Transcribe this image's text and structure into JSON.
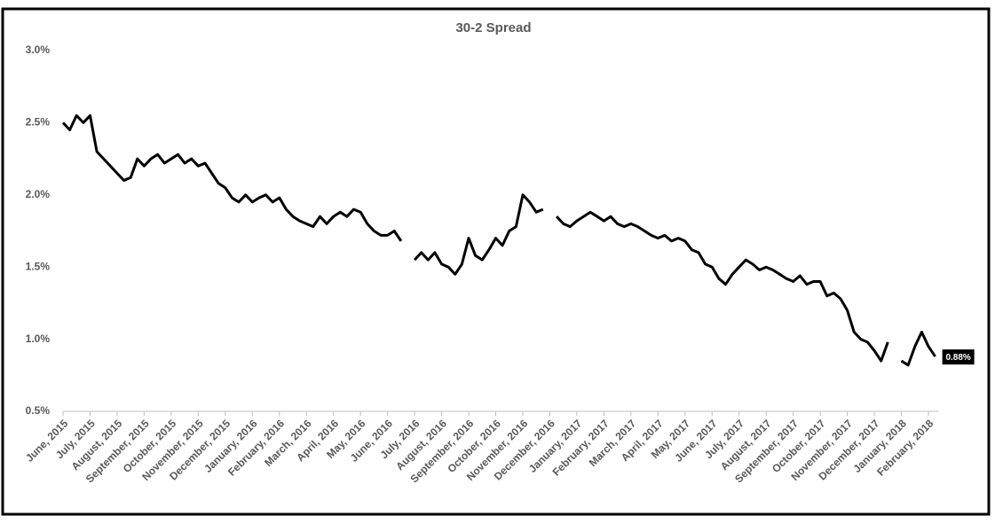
{
  "chart_data": {
    "type": "line",
    "title": "30-2 Spread",
    "categories": [
      "June, 2015",
      null,
      null,
      null,
      "July, 2015",
      null,
      null,
      null,
      "August, 2015",
      null,
      null,
      null,
      "September, 2015",
      null,
      null,
      null,
      "October, 2015",
      null,
      null,
      null,
      "November, 2015",
      null,
      null,
      null,
      "December, 2015",
      null,
      null,
      null,
      "January, 2016",
      null,
      null,
      null,
      "February, 2016",
      null,
      null,
      null,
      "March, 2016",
      null,
      null,
      null,
      "April, 2016",
      null,
      null,
      null,
      "May, 2016",
      null,
      null,
      null,
      "June, 2016",
      null,
      null,
      null,
      "July, 2016",
      null,
      null,
      null,
      "August, 2016",
      null,
      null,
      null,
      "September, 2016",
      null,
      null,
      null,
      "October, 2016",
      null,
      null,
      null,
      "November, 2016",
      null,
      null,
      null,
      "December, 2016",
      null,
      null,
      null,
      "January, 2017",
      null,
      null,
      null,
      "February, 2017",
      null,
      null,
      null,
      "March, 2017",
      null,
      null,
      null,
      "April, 2017",
      null,
      null,
      null,
      "May, 2017",
      null,
      null,
      null,
      "June, 2017",
      null,
      null,
      null,
      "July, 2017",
      null,
      null,
      null,
      "August, 2017",
      null,
      null,
      null,
      "September, 2017",
      null,
      null,
      null,
      "October, 2017",
      null,
      null,
      null,
      "November, 2017",
      null,
      null,
      null,
      "December, 2017",
      null,
      null,
      null,
      "January, 2018",
      null,
      null,
      null,
      "February, 2018",
      null
    ],
    "values": [
      2.5,
      2.45,
      2.55,
      2.5,
      2.55,
      2.3,
      2.25,
      2.2,
      2.15,
      2.1,
      2.12,
      2.25,
      2.2,
      2.25,
      2.28,
      2.22,
      2.25,
      2.28,
      2.22,
      2.25,
      2.2,
      2.22,
      2.15,
      2.08,
      2.05,
      1.98,
      1.95,
      2.0,
      1.95,
      1.98,
      2.0,
      1.95,
      1.98,
      1.9,
      1.85,
      1.82,
      1.8,
      1.78,
      1.85,
      1.8,
      1.85,
      1.88,
      1.85,
      1.9,
      1.88,
      1.8,
      1.75,
      1.72,
      1.72,
      1.75,
      1.68,
      null,
      1.55,
      1.6,
      1.55,
      1.6,
      1.52,
      1.5,
      1.45,
      1.52,
      1.7,
      1.58,
      1.55,
      1.62,
      1.7,
      1.65,
      1.75,
      1.78,
      2.0,
      1.95,
      1.88,
      1.9,
      null,
      1.85,
      1.8,
      1.78,
      1.82,
      1.85,
      1.88,
      1.85,
      1.82,
      1.85,
      1.8,
      1.78,
      1.8,
      1.78,
      1.75,
      1.72,
      1.7,
      1.72,
      1.68,
      1.7,
      1.68,
      1.62,
      1.6,
      1.52,
      1.5,
      1.42,
      1.38,
      1.45,
      1.5,
      1.55,
      1.52,
      1.48,
      1.5,
      1.48,
      1.45,
      1.42,
      1.4,
      1.44,
      1.38,
      1.4,
      1.4,
      1.3,
      1.32,
      1.28,
      1.2,
      1.05,
      1.0,
      0.98,
      0.92,
      0.85,
      0.98,
      null,
      0.85,
      0.82,
      0.95,
      1.05,
      0.95,
      0.88
    ],
    "value_labels": [
      null,
      null,
      null,
      null,
      null,
      null,
      null,
      null,
      null,
      null,
      null,
      null,
      null,
      null,
      null,
      null,
      null,
      null,
      null,
      null,
      null,
      null,
      null,
      null,
      null,
      null,
      null,
      null,
      null,
      null,
      null,
      null,
      null,
      null,
      null,
      null,
      null,
      null,
      null,
      null,
      null,
      null,
      null,
      null,
      null,
      null,
      null,
      null,
      null,
      null,
      null,
      null,
      null,
      null,
      null,
      null,
      null,
      null,
      null,
      null,
      null,
      null,
      null,
      null,
      null,
      null,
      null,
      null,
      null,
      null,
      null,
      null,
      null,
      null,
      null,
      null,
      null,
      null,
      null,
      null,
      null,
      null,
      null,
      null,
      null,
      null,
      null,
      null,
      null,
      null,
      null,
      null,
      null,
      null,
      null,
      null,
      null,
      null,
      null,
      null,
      null,
      null,
      null,
      null,
      null,
      null,
      null,
      null,
      null,
      null,
      null,
      null,
      null,
      null,
      null,
      null,
      null,
      null,
      null,
      null,
      null,
      null,
      null,
      null,
      null,
      null,
      null,
      null,
      null,
      "0.88%"
    ],
    "color": "#000000",
    "ylim": [
      0.5,
      3.0
    ],
    "yticks": [
      {
        "value": 0.5,
        "label": "0.5%"
      },
      {
        "value": 1.0,
        "label": "1.0%"
      },
      {
        "value": 1.5,
        "label": "1.5%"
      },
      {
        "value": 2.0,
        "label": "2.0%"
      },
      {
        "value": 2.5,
        "label": "2.5%"
      },
      {
        "value": 3.0,
        "label": "3.0%"
      }
    ],
    "grid": false
  }
}
